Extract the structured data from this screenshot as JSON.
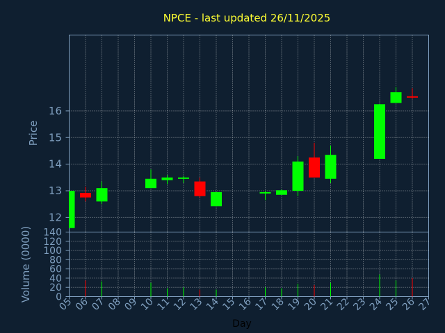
{
  "title": "NPCE - last updated 26/11/2025",
  "colors": {
    "background": "#0f1f30",
    "axis": "#7f9fbf",
    "title": "#ffff33",
    "up": "#00ff00",
    "down": "#ff0000",
    "grid": "#ffffff"
  },
  "chart_data": [
    {
      "type": "candlestick",
      "ylabel": "Price",
      "yticks": [
        12,
        13,
        14,
        15,
        16
      ],
      "ylim": [
        11.45,
        18.85
      ],
      "xlim": [
        5,
        27
      ],
      "grid": true,
      "candles": [
        {
          "day": 5,
          "open": 11.6,
          "high": 13.0,
          "low": 11.6,
          "close": 13.0
        },
        {
          "day": 6,
          "open": 12.92,
          "high": 13.15,
          "low": 12.6,
          "close": 12.75
        },
        {
          "day": 7,
          "open": 12.6,
          "high": 13.35,
          "low": 12.5,
          "close": 13.1
        },
        {
          "day": 10,
          "open": 13.1,
          "high": 13.8,
          "low": 13.1,
          "close": 13.45
        },
        {
          "day": 11,
          "open": 13.4,
          "high": 13.6,
          "low": 13.25,
          "close": 13.5
        },
        {
          "day": 12,
          "open": 13.5,
          "high": 13.55,
          "low": 13.3,
          "close": 13.5
        },
        {
          "day": 13,
          "open": 13.35,
          "high": 13.5,
          "low": 12.75,
          "close": 12.8
        },
        {
          "day": 14,
          "open": 12.42,
          "high": 12.95,
          "low": 12.42,
          "close": 12.95
        },
        {
          "day": 17,
          "open": 12.9,
          "high": 13.0,
          "low": 12.65,
          "close": 12.95
        },
        {
          "day": 18,
          "open": 12.85,
          "high": 13.05,
          "low": 12.85,
          "close": 13.02
        },
        {
          "day": 19,
          "open": 13.0,
          "high": 14.3,
          "low": 12.8,
          "close": 14.1
        },
        {
          "day": 20,
          "open": 14.25,
          "high": 14.8,
          "low": 13.5,
          "close": 13.5
        },
        {
          "day": 21,
          "open": 13.45,
          "high": 14.7,
          "low": 13.3,
          "close": 14.35
        },
        {
          "day": 24,
          "open": 14.2,
          "high": 16.25,
          "low": 14.2,
          "close": 16.25
        },
        {
          "day": 25,
          "open": 16.3,
          "high": 16.9,
          "low": 16.3,
          "close": 16.7
        },
        {
          "day": 26,
          "open": 16.55,
          "high": 16.85,
          "low": 16.45,
          "close": 16.5
        }
      ]
    },
    {
      "type": "bar",
      "ylabel": "Volume (0000)",
      "xlabel": "Day",
      "yticks": [
        0,
        20,
        40,
        60,
        80,
        100,
        120,
        140
      ],
      "ylim": [
        0,
        140
      ],
      "xticks": [
        "05",
        "06",
        "07",
        "08",
        "09",
        "10",
        "11",
        "12",
        "13",
        "14",
        "15",
        "16",
        "17",
        "18",
        "19",
        "20",
        "21",
        "22",
        "23",
        "24",
        "25",
        "26",
        "27"
      ],
      "bars": [
        {
          "day": 6,
          "value": 35,
          "dir": "down"
        },
        {
          "day": 7,
          "value": 33,
          "dir": "up"
        },
        {
          "day": 10,
          "value": 30,
          "dir": "up"
        },
        {
          "day": 11,
          "value": 18,
          "dir": "up"
        },
        {
          "day": 12,
          "value": 20,
          "dir": "up"
        },
        {
          "day": 13,
          "value": 15,
          "dir": "down"
        },
        {
          "day": 14,
          "value": 15,
          "dir": "up"
        },
        {
          "day": 17,
          "value": 20,
          "dir": "up"
        },
        {
          "day": 18,
          "value": 18,
          "dir": "up"
        },
        {
          "day": 19,
          "value": 28,
          "dir": "up"
        },
        {
          "day": 20,
          "value": 25,
          "dir": "down"
        },
        {
          "day": 21,
          "value": 30,
          "dir": "up"
        },
        {
          "day": 24,
          "value": 48,
          "dir": "up"
        },
        {
          "day": 25,
          "value": 35,
          "dir": "up"
        },
        {
          "day": 26,
          "value": 40,
          "dir": "down"
        }
      ]
    }
  ]
}
